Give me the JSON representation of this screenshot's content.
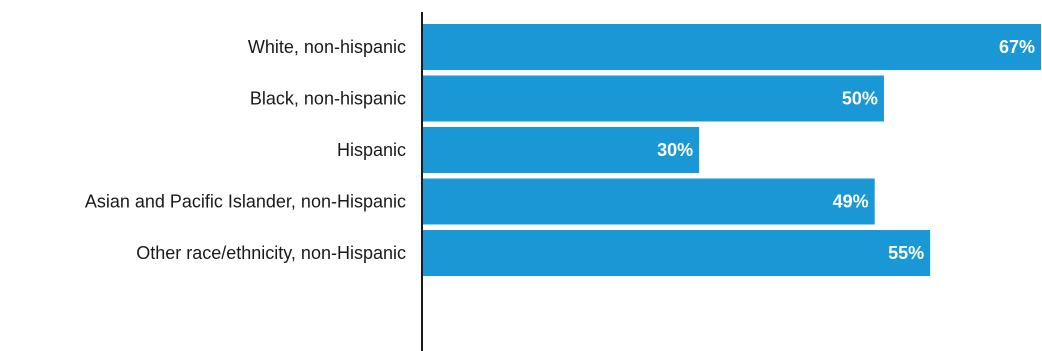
{
  "chart_data": {
    "type": "bar",
    "orientation": "horizontal",
    "title": "",
    "xlabel": "",
    "ylabel": "",
    "categories": [
      "White, non-hispanic",
      "Black, non-hispanic",
      "Hispanic",
      "Asian and Pacific Islander, non-Hispanic",
      "Other race/ethnicity, non-Hispanic"
    ],
    "values": [
      67,
      50,
      30,
      49,
      55
    ],
    "value_labels": [
      "67%",
      "50%",
      "30%",
      "49%",
      "55%"
    ],
    "xlim": [
      0,
      67
    ],
    "grid": false,
    "legend": "none",
    "bar_color": "#1a98d5",
    "label_color": "#ffffff"
  }
}
